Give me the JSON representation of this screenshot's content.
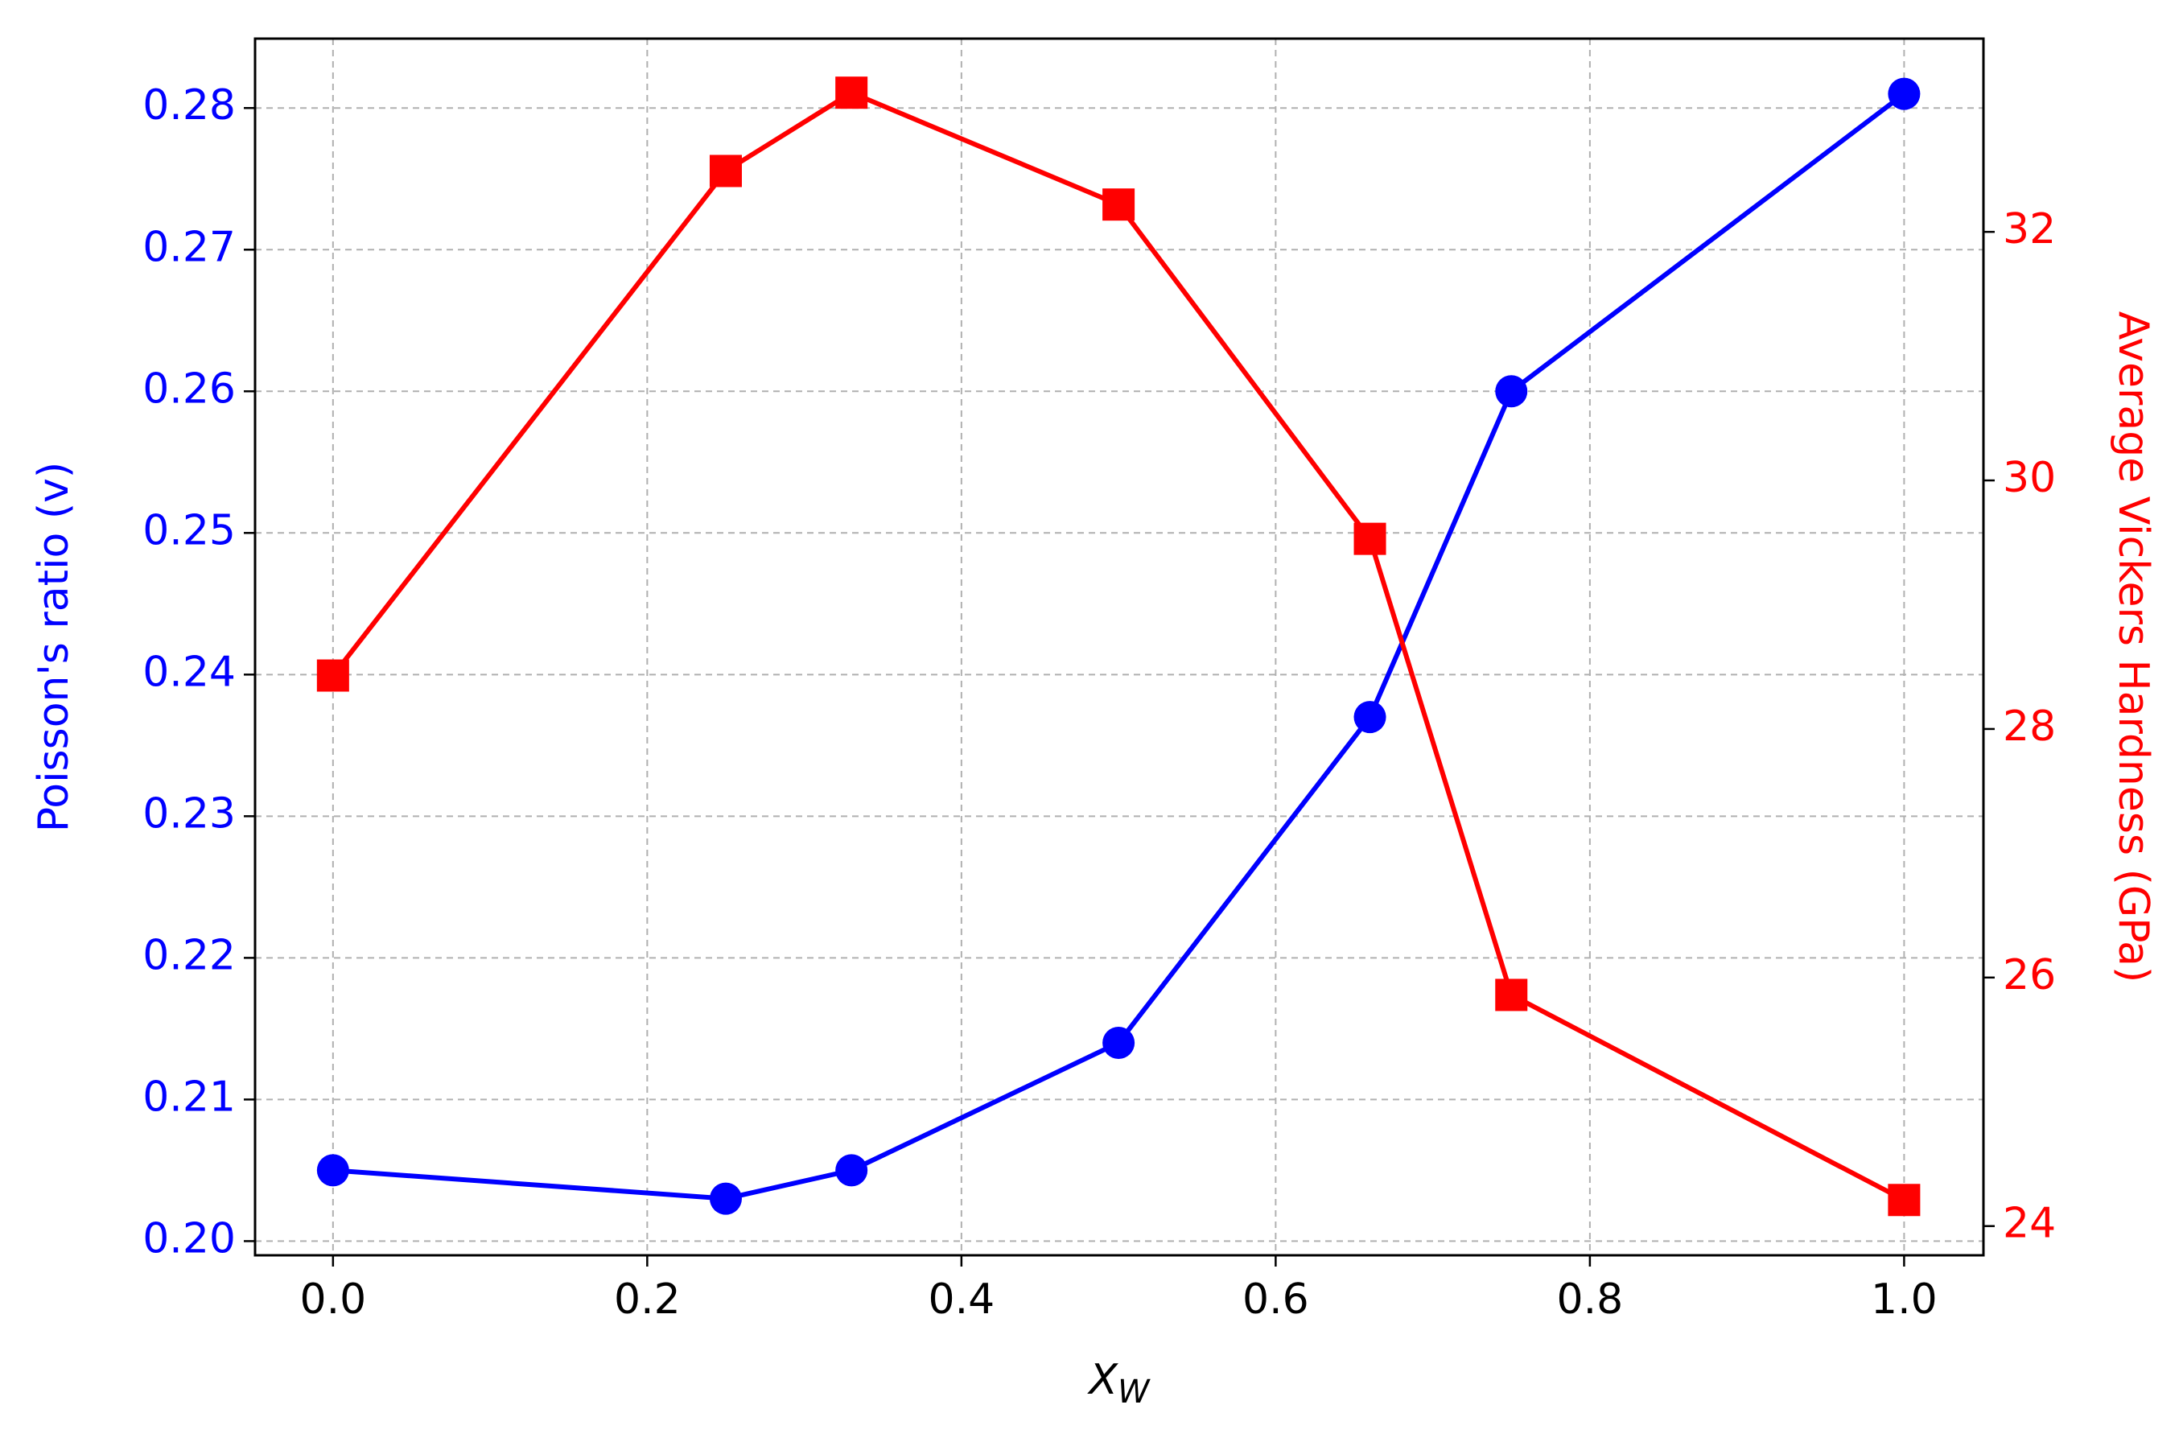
{
  "chart_data": {
    "type": "line",
    "xlabel": "X",
    "xlabel_subscript": "W",
    "ylabel": "Poisson's ratio (v)",
    "y2label": "Average Vickers Hardness (GPa)",
    "x": [
      0,
      0.25,
      0.33,
      0.5,
      0.66,
      0.75,
      1.0
    ],
    "series": [
      {
        "name": "Poisson's ratio",
        "color": "#0000ff",
        "marker": "circle",
        "axis": "y",
        "values": [
          0.205,
          0.203,
          0.205,
          0.214,
          0.237,
          0.26,
          0.281
        ]
      },
      {
        "name": "Average Vickers Hardness",
        "color": "#ff0000",
        "marker": "square",
        "axis": "y2",
        "values": [
          28.43,
          32.49,
          33.12,
          32.22,
          29.53,
          25.86,
          24.21
        ]
      }
    ],
    "xlim": [
      -0.0496,
      1.0505
    ],
    "xticks": [
      {
        "value": 0,
        "label": "0.0"
      },
      0.2,
      0.4,
      0.6,
      0.8,
      {
        "value": 1,
        "label": "1.0"
      }
    ],
    "ylim": [
      0.199,
      0.2849
    ],
    "yticks": [
      {
        "value": 0.2,
        "label": "0.20"
      },
      0.21,
      0.22,
      0.23,
      0.24,
      0.25,
      0.26,
      0.27,
      0.28
    ],
    "y2lim": [
      23.765,
      33.555
    ],
    "y2ticks": [
      24,
      26,
      28,
      30,
      32
    ],
    "grid": true
  }
}
